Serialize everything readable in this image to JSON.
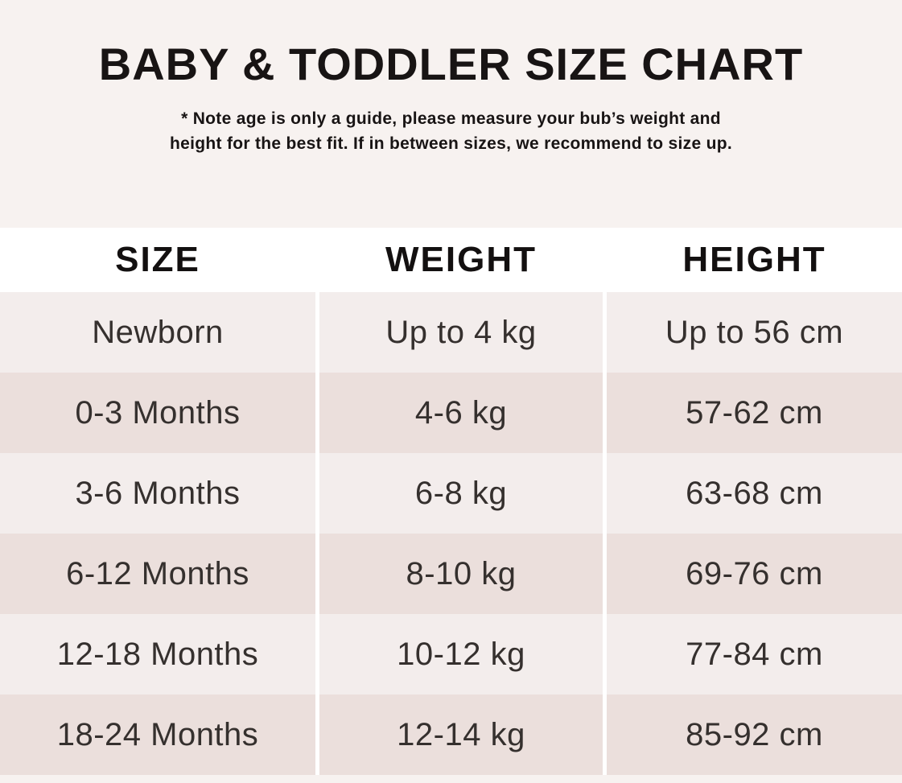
{
  "header": {
    "title": "BABY & TODDLER SIZE CHART",
    "note_line1": "* Note age is only a guide, please measure your bub’s weight and",
    "note_line2": "height for the best fit. If in between sizes, we recommend to size up."
  },
  "colors": {
    "page_background": "#f7f2f0",
    "header_row_background": "#ffffff",
    "row_light": "#f3edec",
    "row_dark": "#ebdfdc",
    "column_gutter": "#ffffff",
    "title_text": "#181414",
    "cell_text": "#35302e"
  },
  "chart_data": {
    "type": "table",
    "title": "BABY & TODDLER SIZE CHART",
    "columns": [
      "SIZE",
      "WEIGHT",
      "HEIGHT"
    ],
    "rows": [
      [
        "Newborn",
        "Up to 4 kg",
        "Up to 56 cm"
      ],
      [
        "0-3 Months",
        "4-6 kg",
        "57-62 cm"
      ],
      [
        "3-6 Months",
        "6-8 kg",
        "63-68 cm"
      ],
      [
        "6-12 Months",
        "8-10 kg",
        "69-76 cm"
      ],
      [
        "12-18 Months",
        "10-12 kg",
        "77-84 cm"
      ],
      [
        "18-24 Months",
        "12-14 kg",
        "85-92 cm"
      ]
    ]
  }
}
